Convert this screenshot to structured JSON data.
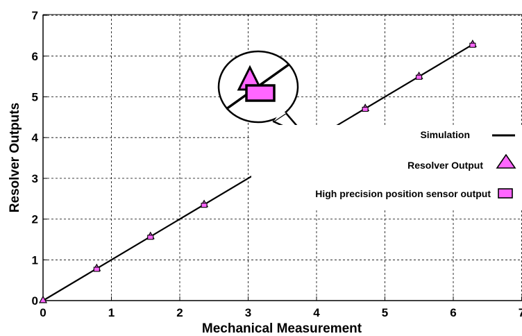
{
  "chart_data": {
    "type": "line",
    "title": "",
    "xlabel": "Mechanical Measurement",
    "ylabel": "Resolver Outputs",
    "xlim": [
      0,
      7
    ],
    "ylim": [
      0,
      7
    ],
    "xticks": [
      "0",
      "1",
      "2",
      "3",
      "4",
      "5",
      "6",
      "7"
    ],
    "yticks": [
      "0",
      "1",
      "2",
      "3",
      "4",
      "5",
      "6",
      "7"
    ],
    "grid": true,
    "legend_position": "right",
    "series": [
      {
        "name": "Simulation",
        "style": "line",
        "color": "#000000",
        "x": [
          0,
          6.28
        ],
        "y": [
          0,
          6.28
        ]
      },
      {
        "name": "Resolver Output",
        "style": "triangle",
        "color": "#ff66ff",
        "x": [
          0,
          0.785,
          1.571,
          2.356,
          3.142,
          3.927,
          4.712,
          5.498,
          6.283
        ],
        "y": [
          0,
          0.785,
          1.571,
          2.356,
          3.142,
          3.927,
          4.712,
          5.498,
          6.283
        ]
      },
      {
        "name": "High precision position sensor output",
        "style": "square",
        "color": "#ff66ff",
        "x": [
          0.785,
          1.571,
          2.356,
          3.142,
          3.927,
          4.712,
          5.498,
          6.283
        ],
        "y": [
          0.785,
          1.571,
          2.356,
          3.142,
          3.927,
          4.712,
          5.498,
          6.283
        ]
      }
    ],
    "annotations": [
      {
        "type": "zoom-callout",
        "target_x": 3.927,
        "target_y": 3.927
      }
    ]
  }
}
